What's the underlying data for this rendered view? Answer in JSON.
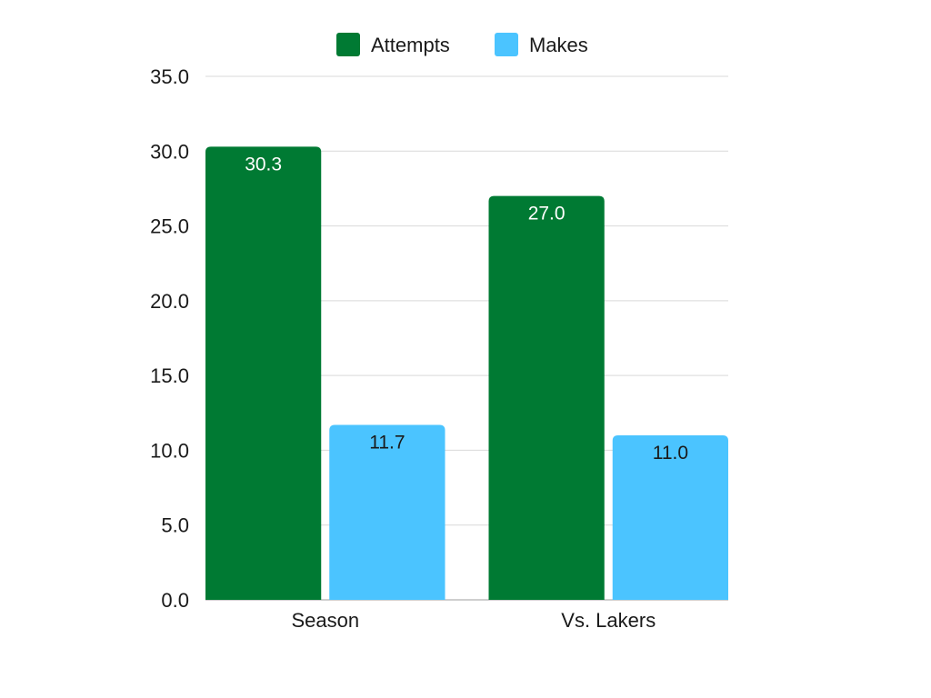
{
  "chart_data": {
    "type": "bar",
    "categories": [
      "Season",
      "Vs. Lakers"
    ],
    "series": [
      {
        "name": "Attempts",
        "values": [
          30.3,
          27.0
        ],
        "color": "#007a33",
        "label_color": "#ffffff"
      },
      {
        "name": "Makes",
        "values": [
          11.7,
          11.0
        ],
        "color": "#4bc4ff",
        "label_color": "#1a1a1a"
      }
    ],
    "value_labels": [
      [
        "30.3",
        "27.0"
      ],
      [
        "11.7",
        "11.0"
      ]
    ],
    "title": "",
    "xlabel": "",
    "ylabel": "",
    "ylim": [
      0,
      35
    ],
    "yticks": [
      "0.0",
      "5.0",
      "10.0",
      "15.0",
      "20.0",
      "25.0",
      "30.0",
      "35.0"
    ],
    "grid": true,
    "grid_color": "#d9d9d9",
    "legend": "top-center"
  }
}
